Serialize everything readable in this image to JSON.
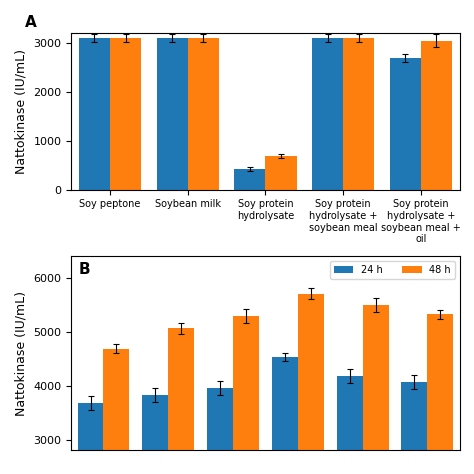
{
  "chart_data": [
    {
      "type": "bar",
      "annotations": [
        "A"
      ],
      "categories": [
        "Soy peptone",
        "Soybean milk",
        "Soy protein hydrolysate",
        "Soy protein hydrolysate + soybean meal",
        "Soy protein hydrolysate + soybean meal + oil"
      ],
      "series": [
        {
          "values": [
            3100,
            3100,
            430,
            3100,
            2700
          ],
          "errors": [
            80,
            80,
            40,
            80,
            80
          ]
        },
        {
          "values": [
            3100,
            3100,
            680,
            3100,
            3050
          ],
          "errors": [
            80,
            80,
            40,
            80,
            130
          ]
        }
      ],
      "ylabel": "Nattokinase (IU/mL)",
      "ylim": [
        0,
        3200
      ],
      "yticks": [
        0,
        1000,
        2000,
        3000
      ]
    },
    {
      "type": "bar",
      "annotations": [
        "B"
      ],
      "categories": [
        null,
        null,
        null,
        null,
        null,
        null
      ],
      "series": [
        {
          "name": "24 h",
          "values": [
            3680,
            3820,
            3950,
            4530,
            4180,
            4070
          ],
          "errors": [
            130,
            130,
            130,
            80,
            130,
            130
          ]
        },
        {
          "name": "48 h",
          "values": [
            4680,
            5060,
            5280,
            5700,
            5500,
            5320
          ],
          "errors": [
            80,
            100,
            130,
            100,
            130,
            80
          ]
        }
      ],
      "ylabel": "Nattokinase (IU/mL)",
      "ylim": [
        2800,
        6400
      ],
      "yticks": [
        3000,
        4000,
        5000,
        6000
      ],
      "legend": "upper right"
    }
  ]
}
